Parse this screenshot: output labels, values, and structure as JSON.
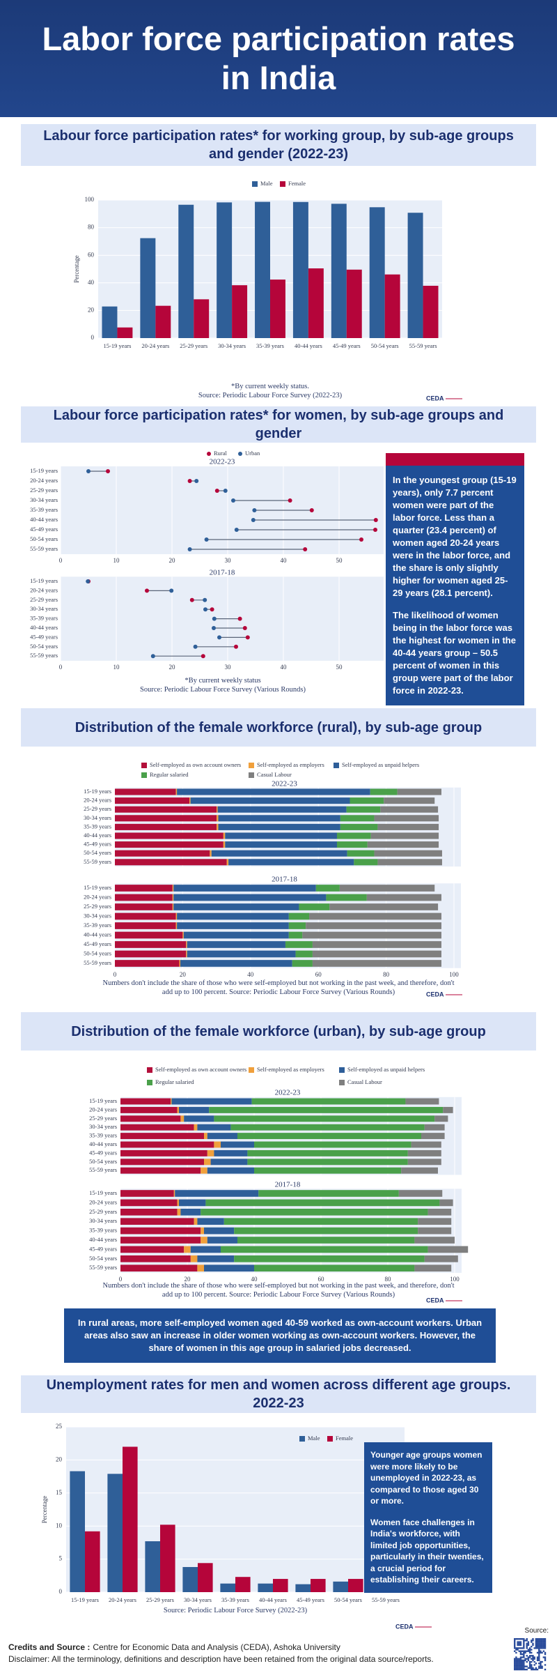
{
  "title": "Labor force participation rates in India",
  "chart_data": [
    {
      "type": "bar",
      "title": "Labour force participation rates* for working group, by sub-age groups and gender (2022-23)",
      "categories": [
        "15-19 years",
        "20-24 years",
        "25-29 years",
        "30-34 years",
        "35-39 years",
        "40-44 years",
        "45-49 years",
        "50-54 years",
        "55-59 years"
      ],
      "series": [
        {
          "name": "Male",
          "color": "#2f5f98",
          "values": [
            22.9,
            72.4,
            96.6,
            98.3,
            98.7,
            98.6,
            97.3,
            94.8,
            90.8
          ]
        },
        {
          "name": "Female",
          "color": "#b5053a",
          "values": [
            7.7,
            23.4,
            28.1,
            38.3,
            42.4,
            50.5,
            49.6,
            46.1,
            37.9
          ]
        }
      ],
      "ylim": [
        0,
        100
      ],
      "yticks": [
        0,
        20,
        40,
        60,
        80,
        100
      ],
      "y_label": "Percentage",
      "grid": true,
      "notes": [
        "*By current weekly status.",
        "Source: Periodic Labour Force Survey (2022-23)"
      ],
      "logo": "CEDA"
    },
    {
      "type": "dumbbell",
      "title": "Labour force participation rates* for women, by sub-age groups and gender",
      "categories": [
        "15-19 years",
        "20-24 years",
        "25-29 years",
        "30-34 years",
        "35-39 years",
        "40-44 years",
        "45-49 years",
        "50-54 years",
        "55-59 years"
      ],
      "legend": [
        {
          "name": "Rural",
          "color": "#b5053a"
        },
        {
          "name": "Urban",
          "color": "#2f5f98"
        }
      ],
      "xlim": [
        0,
        58
      ],
      "xticks": [
        0,
        10,
        20,
        30,
        40,
        50
      ],
      "grid": true,
      "panels": [
        {
          "subtitle": "2022-23",
          "series": [
            {
              "values": [
                8.5,
                23.2,
                28.1,
                41.2,
                45.1,
                56.6,
                56.5,
                54.0,
                43.9
              ]
            },
            {
              "values": [
                5.0,
                24.4,
                29.6,
                31.0,
                34.8,
                34.6,
                31.6,
                26.2,
                23.2
              ]
            }
          ]
        },
        {
          "subtitle": "2017-18",
          "series": [
            {
              "values": [
                5.0,
                15.5,
                23.6,
                27.2,
                32.2,
                33.1,
                33.6,
                31.5,
                25.6
              ]
            },
            {
              "values": [
                4.9,
                19.9,
                25.9,
                26.0,
                27.6,
                27.5,
                28.5,
                24.2,
                16.6
              ]
            }
          ]
        }
      ],
      "notes": [
        "*By current weekly status",
        "Source: Periodic Labour Force Survey (Various Rounds)"
      ]
    },
    {
      "type": "stacked",
      "title": "Distribution of the female workforce (rural), by sub-age group",
      "categories": [
        "15-19 years",
        "20-24 years",
        "25-29 years",
        "30-34 years",
        "35-39 years",
        "40-44 years",
        "45-49 years",
        "50-54 years",
        "55-59 years"
      ],
      "legend": [
        {
          "name": "Self-employed as own account owners",
          "color": "#b30f3a"
        },
        {
          "name": "Self-employed as employers",
          "color": "#f0a03c"
        },
        {
          "name": "Self-employed as unpaid helpers",
          "color": "#2e5e99"
        },
        {
          "name": "Regular salaried",
          "color": "#4aa04a"
        },
        {
          "name": "Casual Labour",
          "color": "#7f7f7f"
        }
      ],
      "xlim": [
        0,
        100
      ],
      "xticks": [
        0,
        20,
        40,
        60,
        80,
        100
      ],
      "panels": [
        {
          "subtitle": "2022-23",
          "series": [
            {
              "values": [
                18,
                22,
                30,
                30,
                30,
                32,
                32,
                28,
                33
              ]
            },
            {
              "values": [
                0.3,
                0.3,
                0.3,
                0.5,
                0.5,
                0.5,
                0.5,
                0.5,
                0.5
              ]
            },
            {
              "values": [
                57,
                47,
                38,
                36,
                36,
                33,
                33,
                40,
                37
              ]
            },
            {
              "values": [
                8,
                10,
                10,
                10,
                11,
                10,
                9,
                8,
                7
              ]
            },
            {
              "values": [
                13,
                15,
                17,
                19,
                18,
                20,
                21,
                20,
                19
              ]
            }
          ]
        },
        {
          "subtitle": "2017-18",
          "series": [
            {
              "values": [
                17,
                17,
                17,
                18,
                18,
                20,
                21,
                21,
                19
              ]
            },
            {
              "values": [
                0.3,
                0.3,
                0.3,
                0.3,
                0.3,
                0.3,
                0.3,
                0.3,
                0.3
              ]
            },
            {
              "values": [
                42,
                45,
                37,
                33,
                33,
                31,
                29,
                32,
                33
              ]
            },
            {
              "values": [
                7,
                12,
                9,
                6,
                5,
                4,
                8,
                5,
                6
              ]
            },
            {
              "values": [
                28,
                22,
                32,
                39,
                40,
                41,
                38,
                38,
                38
              ]
            }
          ]
        }
      ],
      "notes": [
        "Numbers don't include the share of those who were self-employed but not working in the past week, and therefore, don't add up to 100 percent. Source: Periodic Labour Force Survey (Various Rounds)"
      ],
      "logo": "CEDA"
    },
    {
      "type": "stacked",
      "title": "Distribution of the female workforce (urban), by sub-age group",
      "categories": [
        "15-19 years",
        "20-24 years",
        "25-29 years",
        "30-34 years",
        "35-39 years",
        "40-44 years",
        "45-49 years",
        "50-54 years",
        "55-59 years"
      ],
      "legend": [
        {
          "name": "Self-employed as own account owners",
          "color": "#b30f3a"
        },
        {
          "name": "Self-employed as employers",
          "color": "#f0a03c"
        },
        {
          "name": "Self-employed as unpaid helpers",
          "color": "#2e5e99"
        },
        {
          "name": "Regular salaried",
          "color": "#4aa04a"
        },
        {
          "name": "Casual Labour",
          "color": "#7f7f7f"
        }
      ],
      "xlim": [
        0,
        100
      ],
      "xticks": [
        0,
        20,
        40,
        60,
        80,
        100
      ],
      "panels": [
        {
          "subtitle": "2022-23",
          "series": [
            {
              "values": [
                15,
                17,
                18,
                22,
                25,
                28,
                26,
                25,
                24
              ]
            },
            {
              "values": [
                0.3,
                0.5,
                1,
                1,
                1,
                2,
                2,
                2,
                2
              ]
            },
            {
              "values": [
                24,
                9,
                9,
                10,
                9,
                10,
                10,
                11,
                14
              ]
            },
            {
              "values": [
                46,
                70,
                66,
                58,
                55,
                47,
                48,
                48,
                44
              ]
            },
            {
              "values": [
                10,
                3,
                4,
                6,
                7,
                9,
                10,
                10,
                11
              ]
            }
          ]
        },
        {
          "subtitle": "2017-18",
          "series": [
            {
              "values": [
                16,
                17,
                17,
                22,
                24,
                24,
                19,
                21,
                23
              ]
            },
            {
              "values": [
                0.3,
                0.5,
                1,
                1,
                1,
                2,
                2,
                2,
                2
              ]
            },
            {
              "values": [
                25,
                8,
                6,
                8,
                9,
                9,
                9,
                11,
                15
              ]
            },
            {
              "values": [
                42,
                70,
                68,
                58,
                55,
                53,
                62,
                57,
                48
              ]
            },
            {
              "values": [
                13,
                4,
                7,
                10,
                10,
                12,
                12,
                10,
                11
              ]
            }
          ]
        }
      ],
      "notes": [
        "Numbers don't include the share of those who were self-employed but not working in the past week, and therefore, don't add up to 100 percent. Source: Periodic Labour Force Survey (Various Rounds)"
      ],
      "logo": "CEDA"
    },
    {
      "type": "bar",
      "title": "Unemployment rates for men and women across different age groups. 2022-23",
      "categories": [
        "15-19 years",
        "20-24 years",
        "25-29 years",
        "30-34 years",
        "35-39 years",
        "40-44 years",
        "45-49 years",
        "50-54 years",
        "55-59 years"
      ],
      "series": [
        {
          "name": "Male",
          "color": "#2f5f98",
          "values": [
            18.3,
            17.9,
            7.7,
            3.8,
            1.3,
            1.3,
            1.2,
            1.6,
            1.6
          ]
        },
        {
          "name": "Female",
          "color": "#b5053a",
          "values": [
            9.2,
            22.0,
            10.2,
            4.4,
            2.3,
            2.0,
            2.0,
            2.0,
            1.6
          ]
        }
      ],
      "ylim": [
        0,
        25
      ],
      "yticks": [
        0,
        5,
        10,
        15,
        20,
        25
      ],
      "y_label": "Percentage",
      "grid": true,
      "notes": [
        "Source: Periodic Labour Force Survey (2022-23)"
      ],
      "logo": "CEDA"
    }
  ],
  "callouts": [
    {
      "paragraphs": [
        "In the youngest group (15-19 years), only 7.7 percent women were part of the labor force. Less than a quarter (23.4 percent) of women aged 20-24 years were in the labor force, and the share is only slightly higher for women aged 25-29 years (28.1 percent).",
        "The likelihood of women being in the labor force was the highest for women in the 40-44 years group – 50.5 percent of women in this group were part of the labor force in 2022-23."
      ]
    },
    {
      "paragraphs": [
        "In rural areas, more self-employed women aged 40-59 worked as own-account workers. Urban areas also saw an increase in older women working as own-account workers. However, the share of women in this age group in salaried jobs decreased."
      ]
    },
    {
      "paragraphs": [
        "Younger age groups women were more likely to be unemployed in 2022-23, as compared to those aged 30 or more.",
        "Women face challenges in India's workforce, with limited job opportunities, particularly in their twenties, a crucial period for establishing their careers."
      ]
    }
  ],
  "footer": {
    "credits_label": "Credits and Source :",
    "credits": "Centre for Economic Data and Analysis (CEDA), Ashoka University",
    "disclaimer": "Disclaimer: All the terminology, definitions and description have been retained from the original data source/reports.",
    "qr_label": "Source:"
  }
}
